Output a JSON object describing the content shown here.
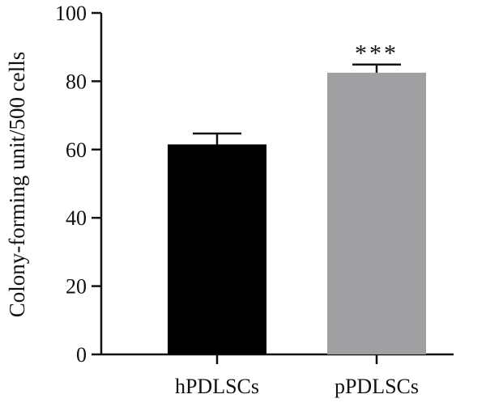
{
  "chart_data": {
    "type": "bar",
    "categories": [
      "hPDLSCs",
      "pPDLSCs"
    ],
    "values": [
      61.5,
      82.5
    ],
    "errors": [
      3.2,
      2.4
    ],
    "colors": [
      "#000000",
      "#a0a0a2"
    ],
    "significance": [
      "",
      "***"
    ],
    "ylabel": "Colony-forming unit/500 cells",
    "xlabel": "",
    "ylim": [
      0,
      100
    ],
    "yticks": [
      "0",
      "20",
      "40",
      "60",
      "80",
      "100"
    ],
    "grid": false,
    "legend": "none"
  }
}
